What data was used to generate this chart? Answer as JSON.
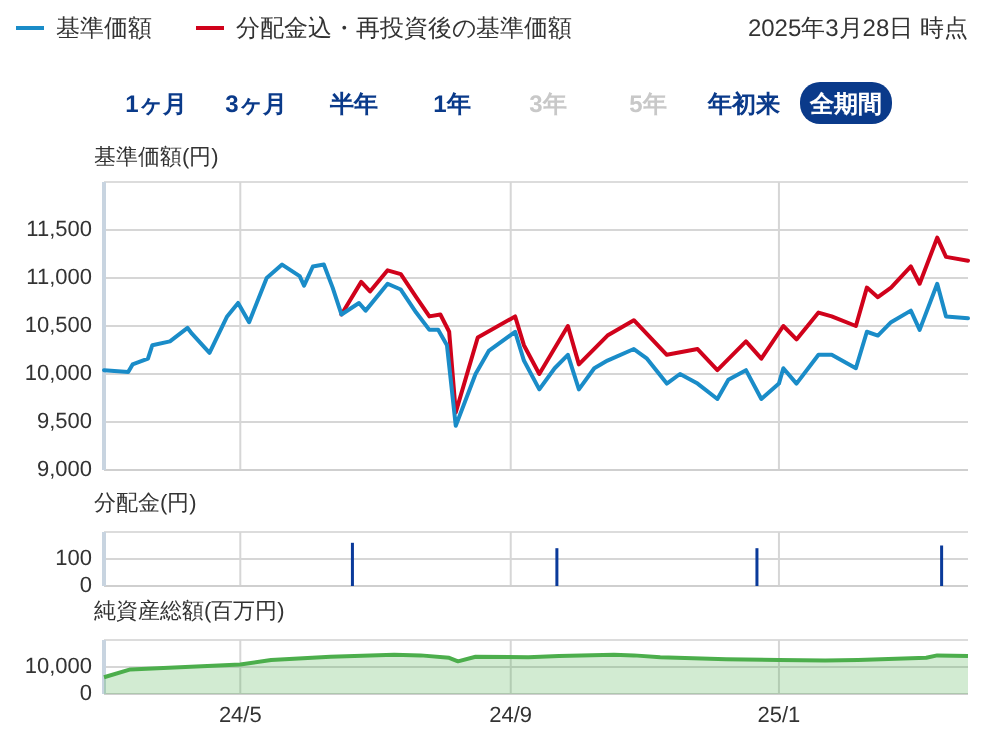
{
  "chart_data": [
    {
      "type": "line",
      "ylabel": "基準価額(円)",
      "subtitle": "2025年3月28日 時点",
      "annotations": [
        "1ヶ月",
        "3ヶ月",
        "半年",
        "1年",
        "3年",
        "5年",
        "年初来",
        "全期間"
      ],
      "legend": "top left",
      "grid": true,
      "tick_labels": "y",
      "xlim": [
        "2024-02-29",
        "2025-03-28"
      ],
      "xticks": [
        {
          "value": "2024-05-01",
          "label": null
        },
        {
          "value": "2024-09-01",
          "label": null
        },
        {
          "value": "2025-01-01",
          "label": null
        }
      ],
      "ylim": [
        9000,
        12000
      ],
      "yticks": [
        {
          "value": 9000,
          "label": "9,000"
        },
        {
          "value": 9500,
          "label": "9,500"
        },
        {
          "value": 10000,
          "label": "10,000"
        },
        {
          "value": 10500,
          "label": "10,500"
        },
        {
          "value": 11000,
          "label": "11,000"
        },
        {
          "value": 11500,
          "label": "11,500"
        }
      ],
      "series": [
        {
          "name": "基準価額",
          "color": "#1a8cc8",
          "x": [
            "2024-02-29",
            "2024-03-11",
            "2024-03-13",
            "2024-03-20",
            "2024-03-22",
            "2024-03-30",
            "2024-04-07",
            "2024-04-09",
            "2024-04-17",
            "2024-04-25",
            "2024-04-30",
            "2024-05-05",
            "2024-05-13",
            "2024-05-20",
            "2024-05-24",
            "2024-05-28",
            "2024-05-30",
            "2024-06-03",
            "2024-06-08",
            "2024-06-12",
            "2024-06-16",
            "2024-06-24",
            "2024-06-27",
            "2024-07-07",
            "2024-07-13",
            "2024-07-20",
            "2024-07-26",
            "2024-07-30",
            "2024-08-03",
            "2024-08-07",
            "2024-08-16",
            "2024-08-22",
            "2024-09-03",
            "2024-09-07",
            "2024-09-14",
            "2024-09-21",
            "2024-09-27",
            "2024-10-02",
            "2024-10-09",
            "2024-10-15",
            "2024-10-27",
            "2024-11-02",
            "2024-11-11",
            "2024-11-17",
            "2024-11-25",
            "2024-12-04",
            "2024-12-09",
            "2024-12-17",
            "2024-12-24",
            "2025-01-01",
            "2025-01-03",
            "2025-01-09",
            "2025-01-19",
            "2025-01-25",
            "2025-02-05",
            "2025-02-10",
            "2025-02-15",
            "2025-02-21",
            "2025-03-02",
            "2025-03-06",
            "2025-03-14",
            "2025-03-18",
            "2025-03-28"
          ],
          "values": [
            10040,
            10020,
            10100,
            10160,
            10300,
            10340,
            10480,
            10420,
            10220,
            10600,
            10740,
            10540,
            11000,
            11140,
            11080,
            11020,
            10920,
            11120,
            11140,
            10900,
            10620,
            10740,
            10660,
            10940,
            10880,
            10640,
            10460,
            10460,
            10300,
            9460,
            10000,
            10240,
            10440,
            10140,
            9840,
            10060,
            10200,
            9840,
            10060,
            10140,
            10260,
            10160,
            9900,
            10000,
            9900,
            9740,
            9940,
            10040,
            9740,
            9900,
            10060,
            9900,
            10200,
            10200,
            10060,
            10440,
            10400,
            10540,
            10660,
            10460,
            10940,
            10600,
            10580
          ]
        },
        {
          "name": "分配金込・再投資後の基準価額",
          "color": "#d0021b",
          "x": [
            "2024-06-16",
            "2024-06-25",
            "2024-06-29",
            "2024-07-07",
            "2024-07-13",
            "2024-07-20",
            "2024-07-26",
            "2024-07-31",
            "2024-08-04",
            "2024-08-07",
            "2024-08-17",
            "2024-09-03",
            "2024-09-07",
            "2024-09-14",
            "2024-09-27",
            "2024-10-02",
            "2024-10-15",
            "2024-10-27",
            "2024-11-11",
            "2024-11-25",
            "2024-12-04",
            "2024-12-17",
            "2024-12-24",
            "2025-01-03",
            "2025-01-09",
            "2025-01-19",
            "2025-01-25",
            "2025-02-05",
            "2025-02-10",
            "2025-02-15",
            "2025-02-21",
            "2025-03-02",
            "2025-03-06",
            "2025-03-14",
            "2025-03-18",
            "2025-03-28"
          ],
          "values": [
            10620,
            10960,
            10860,
            11080,
            11040,
            10800,
            10600,
            10620,
            10440,
            9600,
            10380,
            10600,
            10300,
            10000,
            10500,
            10100,
            10400,
            10560,
            10200,
            10260,
            10040,
            10340,
            10160,
            10500,
            10360,
            10640,
            10600,
            10500,
            10900,
            10800,
            10900,
            11120,
            10940,
            11420,
            11220,
            11180
          ]
        }
      ]
    },
    {
      "type": "bar",
      "ylabel": "分配金(円)",
      "grid": true,
      "tick_labels": "y",
      "xlim": [
        "2024-02-29",
        "2025-03-28"
      ],
      "xticks": [
        {
          "value": "2024-05-01",
          "label": null
        },
        {
          "value": "2024-09-01",
          "label": null
        },
        {
          "value": "2025-01-01",
          "label": null
        }
      ],
      "ylim": [
        0,
        200
      ],
      "yticks": [
        {
          "value": 0,
          "label": "0"
        },
        {
          "value": 100,
          "label": "100"
        }
      ],
      "series": [
        {
          "color": "#0a3a9a",
          "x": [
            "2024-06-21",
            "2024-09-22",
            "2024-12-22",
            "2025-03-16"
          ],
          "values": [
            160,
            140,
            140,
            150
          ]
        }
      ]
    },
    {
      "type": "area",
      "ylabel": "純資産総額(百万円)",
      "grid": true,
      "xlim": [
        "2024-02-29",
        "2025-03-28"
      ],
      "xticks": [
        {
          "value": "2024-05-01",
          "label": "24/5"
        },
        {
          "value": "2024-09-01",
          "label": "24/9"
        },
        {
          "value": "2025-01-01",
          "label": "25/1"
        }
      ],
      "ylim": [
        0,
        20000
      ],
      "yticks": [
        0,
        {
          "value": 10000,
          "label": "10,000"
        }
      ],
      "series": [
        {
          "color": "#4cae4c",
          "x": [
            "2024-02-29",
            "2024-03-12",
            "2024-05-01",
            "2024-05-15",
            "2024-06-11",
            "2024-07-10",
            "2024-07-22",
            "2024-08-04",
            "2024-08-08",
            "2024-08-16",
            "2024-09-09",
            "2024-09-23",
            "2024-10-18",
            "2024-10-27",
            "2024-11-08",
            "2024-12-08",
            "2025-01-01",
            "2025-01-22",
            "2025-02-06",
            "2025-03-09",
            "2025-03-14",
            "2025-03-28"
          ],
          "values": [
            6200,
            9100,
            10900,
            12600,
            13800,
            14500,
            14300,
            13400,
            12100,
            13800,
            13600,
            14100,
            14500,
            14300,
            13600,
            12900,
            12600,
            12400,
            12600,
            13400,
            14300,
            14100
          ]
        }
      ]
    }
  ]
}
